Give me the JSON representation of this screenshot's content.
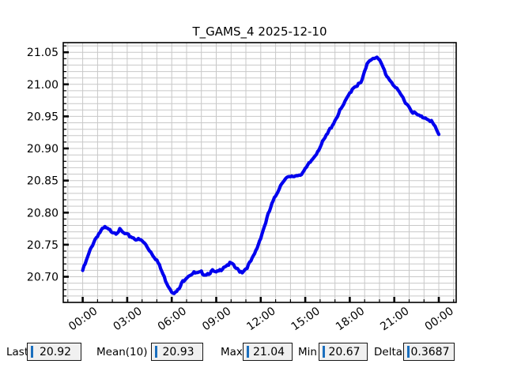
{
  "title": "T_GAMS_4 2025-12-10",
  "colors": {
    "line": "#0000ee",
    "grid": "#c8c8c8",
    "frame": "#000000",
    "tick": "#000000",
    "cursor_blue": "#1a6fbe",
    "box_bg": "#f0f0f0",
    "background": "#ffffff"
  },
  "chart_data": {
    "type": "line",
    "title": "T_GAMS_4 2025-12-10",
    "xlabel": "",
    "ylabel": "",
    "x_unit": "hours",
    "x_start_hour": 0,
    "x_step_hours": 0.25,
    "values": [
      20.711,
      20.726,
      20.742,
      20.756,
      20.766,
      20.773,
      20.778,
      20.774,
      20.772,
      20.77,
      20.774,
      20.769,
      20.766,
      20.764,
      20.761,
      20.759,
      20.757,
      20.751,
      20.743,
      20.735,
      20.727,
      20.714,
      20.7,
      20.688,
      20.679,
      20.676,
      20.682,
      20.694,
      20.701,
      20.705,
      20.707,
      20.706,
      20.708,
      20.705,
      20.707,
      20.71,
      20.707,
      20.711,
      20.717,
      20.72,
      20.722,
      20.716,
      20.711,
      20.709,
      20.714,
      20.722,
      20.732,
      20.746,
      20.763,
      20.78,
      20.798,
      20.814,
      20.827,
      20.84,
      20.851,
      20.855,
      20.856,
      20.858,
      20.86,
      20.862,
      20.868,
      20.877,
      20.885,
      20.894,
      20.904,
      20.914,
      20.924,
      20.935,
      20.945,
      20.956,
      20.966,
      20.976,
      20.988,
      20.997,
      21.0,
      21.003,
      21.02,
      21.037,
      21.042,
      21.044,
      21.038,
      21.027,
      21.014,
      21.007,
      20.999,
      20.99,
      20.983,
      20.974,
      20.966,
      20.958,
      20.954,
      20.951,
      20.95,
      20.948,
      20.944,
      20.934,
      20.922
    ],
    "ylim": [
      20.66,
      21.065
    ],
    "xlim_hours": [
      -1.31,
      25.17
    ],
    "yticks_major": [
      20.7,
      20.75,
      20.8,
      20.85,
      20.9,
      20.95,
      21.0,
      21.05
    ],
    "ytick_minor_step": 0.01,
    "xticks_major_hours": [
      0,
      3,
      6,
      9,
      12,
      15,
      18,
      21,
      24
    ],
    "xticks_major_labels": [
      "00:00",
      "03:00",
      "06:00",
      "09:00",
      "12:00",
      "15:00",
      "18:00",
      "21:00",
      "00:00"
    ],
    "xtick_minor_step_hours": 1,
    "grid": true,
    "legend": "none"
  },
  "stats": [
    {
      "label": "Last",
      "value": "20.92"
    },
    {
      "label": "Mean(10)",
      "value": "20.93"
    },
    {
      "label": "Max",
      "value": "21.04"
    },
    {
      "label": "Min",
      "value": "20.67"
    },
    {
      "label": "Delta",
      "value": "0.3687"
    }
  ]
}
